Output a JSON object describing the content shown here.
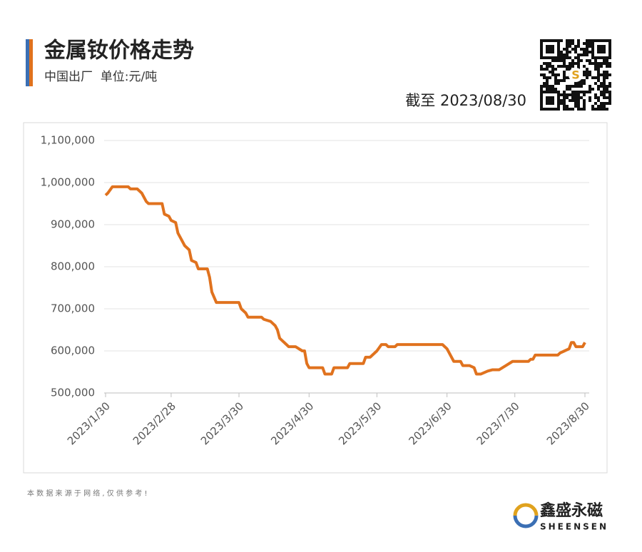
{
  "header": {
    "title": "金属钕价格走势",
    "subtitle": "中国出厂  单位:元/吨",
    "as_of": "截至 2023/08/30"
  },
  "chart_data": {
    "type": "line",
    "color": "#e0721e",
    "x": [
      "2023/1/30",
      "2023/1/31",
      "2023/2/2",
      "2023/2/9",
      "2023/2/10",
      "2023/2/13",
      "2023/2/15",
      "2023/2/17",
      "2023/2/18",
      "2023/2/24",
      "2023/2/25",
      "2023/2/27",
      "2023/2/28",
      "2023/3/2",
      "2023/3/3",
      "2023/3/4",
      "2023/3/6",
      "2023/3/8",
      "2023/3/9",
      "2023/3/11",
      "2023/3/12",
      "2023/3/16",
      "2023/3/17",
      "2023/3/18",
      "2023/3/20",
      "2023/3/30",
      "2023/3/31",
      "2023/4/2",
      "2023/4/3",
      "2023/4/9",
      "2023/4/10",
      "2023/4/13",
      "2023/4/15",
      "2023/4/16",
      "2023/4/17",
      "2023/4/20",
      "2023/4/21",
      "2023/4/24",
      "2023/4/27",
      "2023/4/28",
      "2023/4/29",
      "2023/4/30",
      "2023/5/6",
      "2023/5/7",
      "2023/5/10",
      "2023/5/11",
      "2023/5/17",
      "2023/5/18",
      "2023/5/24",
      "2023/5/25",
      "2023/5/27",
      "2023/5/30",
      "2023/6/1",
      "2023/6/3",
      "2023/6/4",
      "2023/6/7",
      "2023/6/8",
      "2023/6/28",
      "2023/6/30",
      "2023/7/3",
      "2023/7/6",
      "2023/7/7",
      "2023/7/10",
      "2023/7/12",
      "2023/7/13",
      "2023/7/15",
      "2023/7/18",
      "2023/7/20",
      "2023/7/23",
      "2023/7/26",
      "2023/7/29",
      "2023/8/5",
      "2023/8/6",
      "2023/8/7",
      "2023/8/8",
      "2023/8/18",
      "2023/8/19",
      "2023/8/21",
      "2023/8/23",
      "2023/8/24",
      "2023/8/25",
      "2023/8/26",
      "2023/8/29",
      "2023/8/30"
    ],
    "values": [
      970000,
      975000,
      990000,
      990000,
      985000,
      985000,
      975000,
      955000,
      950000,
      950000,
      925000,
      920000,
      910000,
      905000,
      880000,
      870000,
      850000,
      840000,
      815000,
      810000,
      795000,
      795000,
      775000,
      740000,
      715000,
      715000,
      700000,
      690000,
      680000,
      680000,
      675000,
      670000,
      660000,
      650000,
      630000,
      615000,
      610000,
      610000,
      600000,
      600000,
      570000,
      560000,
      560000,
      545000,
      545000,
      560000,
      560000,
      570000,
      570000,
      585000,
      585000,
      600000,
      615000,
      615000,
      610000,
      610000,
      615000,
      615000,
      605000,
      575000,
      575000,
      565000,
      565000,
      560000,
      545000,
      545000,
      552000,
      555000,
      555000,
      565000,
      575000,
      575000,
      580000,
      580000,
      590000,
      590000,
      595000,
      600000,
      605000,
      620000,
      620000,
      610000,
      610000,
      620000
    ],
    "xlim": [
      "2023/1/30",
      "2023/8/30"
    ],
    "xticks": [
      "2023/1/30",
      "2023/2/28",
      "2023/3/30",
      "2023/4/30",
      "2023/5/30",
      "2023/6/30",
      "2023/7/30",
      "2023/8/30"
    ],
    "ylim": [
      500000,
      1100000
    ],
    "yticks": [
      {
        "value": 500000,
        "label": "500,000"
      },
      {
        "value": 600000,
        "label": "600,000"
      },
      {
        "value": 700000,
        "label": "700,000"
      },
      {
        "value": 800000,
        "label": "800,000"
      },
      {
        "value": 900000,
        "label": "900,000"
      },
      {
        "value": 1000000,
        "label": "1,000,000"
      },
      {
        "value": 1100000,
        "label": "1,100,000"
      }
    ],
    "grid": true
  },
  "footer": {
    "note": "本 数 据 来 源 于 网 络 , 仅 供 参 考 !",
    "brand": "鑫盛永磁",
    "brand_en": "SHEENSEN"
  }
}
